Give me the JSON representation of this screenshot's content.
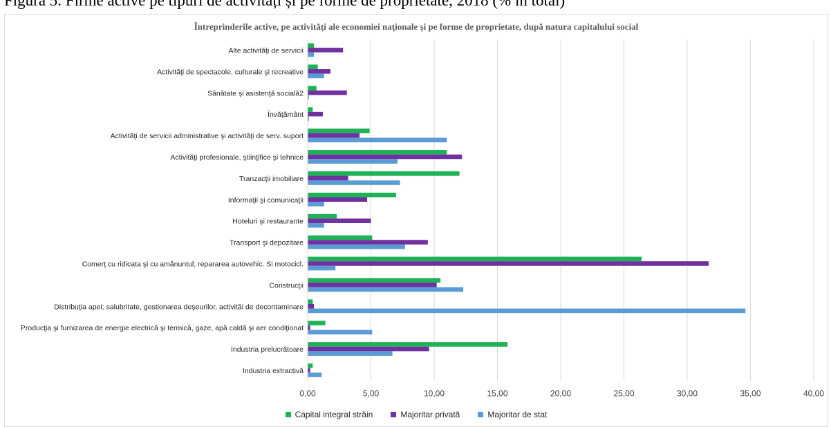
{
  "caption": "Figura 5. Firme active pe tipuri de activități și pe forme de proprietate, 2018 (% în total)",
  "chart_data": {
    "type": "bar",
    "orientation": "horizontal",
    "title": "Întreprinderile  active, pe activităţi ale economiei naţionale şi pe forme de proprietate, după natura capitalului social",
    "xlim": [
      0,
      40
    ],
    "xticks": [
      "0,00",
      "5,00",
      "10,00",
      "15,00",
      "20,00",
      "25,00",
      "30,00",
      "35,00",
      "40,00"
    ],
    "grid": true,
    "legend_position": "bottom",
    "categories": [
      "Alte activităţi de servicii",
      "Activităţi de spectacole, culturale şi recreative",
      "Sănătate şi asistenţă socială2",
      "Învăţământ",
      "Activităţi de servicii administrative şi activităţi de serv. suport",
      "Activităţi profesionale, ştiinţifice şi tehnice",
      "Tranzacţii imobiliare",
      "Informaţii şi comunicaţii",
      "Hoteluri şi restaurante",
      "Transport şi depozitare",
      "Comerţ cu ridicata şi cu amănuntul; repararea autovehic. Si motocicl.",
      "Construcţii",
      "Distribuţia  apei; salubritate,  gestionarea deşeurilor,  activităi  de decontaminare",
      "Producţia şi furnizarea de energie electrică şi termică,  gaze, apă caldă şi aer condiţionat",
      "Industria prelucrătoare",
      "Industria extractivă"
    ],
    "series": [
      {
        "name": "Capital integral străin",
        "color": "#1eb155",
        "values": [
          0.5,
          0.8,
          0.7,
          0.4,
          4.9,
          11.0,
          12.0,
          7.0,
          2.3,
          5.1,
          26.4,
          10.5,
          0.4,
          1.4,
          15.8,
          0.4
        ]
      },
      {
        "name": "Majoritar privată",
        "color": "#7030a0",
        "values": [
          2.8,
          1.8,
          3.1,
          1.2,
          4.1,
          12.2,
          3.2,
          4.7,
          5.0,
          9.5,
          31.7,
          10.2,
          0.5,
          0.2,
          9.6,
          0.2
        ]
      },
      {
        "name": "Majoritar de stat",
        "color": "#5b9bd5",
        "values": [
          0.5,
          1.3,
          0.1,
          0.1,
          11.0,
          7.1,
          7.3,
          1.3,
          1.3,
          7.7,
          2.2,
          12.3,
          34.6,
          5.1,
          6.7,
          1.1
        ]
      }
    ]
  }
}
